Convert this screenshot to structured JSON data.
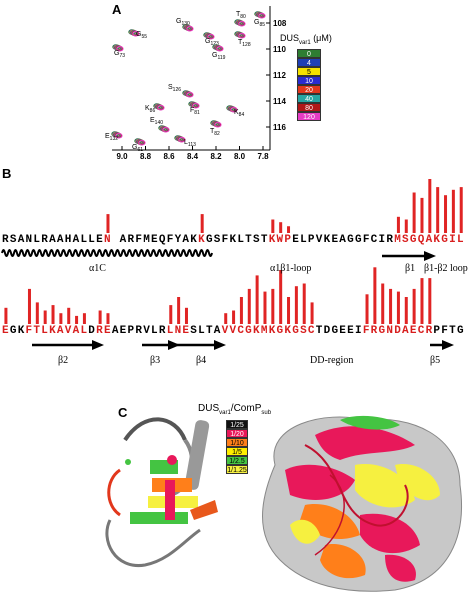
{
  "panels": {
    "a": {
      "label": "A",
      "legend_title_main": "DUS",
      "legend_title_sub": "var1",
      "legend_title_unit": " (μM)",
      "legend": [
        {
          "value": "0",
          "color": "#2e7d32"
        },
        {
          "value": "4",
          "color": "#1f3fb5"
        },
        {
          "value": "5",
          "color": "#f5e100"
        },
        {
          "value": "10",
          "color": "#2b2bd0"
        },
        {
          "value": "20",
          "color": "#e2371c"
        },
        {
          "value": "40",
          "color": "#27a6a2"
        },
        {
          "value": "80",
          "color": "#b01717"
        },
        {
          "value": "120",
          "color": "#e63cc5"
        }
      ],
      "x_ticks": [
        "9.0",
        "8.8",
        "8.6",
        "8.4",
        "8.2",
        "8.0",
        "7.8"
      ],
      "y_ticks": [
        "108",
        "110",
        "112",
        "114",
        "116"
      ],
      "peaks": [
        {
          "label": "G",
          "sub": "55"
        },
        {
          "label": "G",
          "sub": "73"
        },
        {
          "label": "G",
          "sub": "130"
        },
        {
          "label": "G",
          "sub": "123"
        },
        {
          "label": "T",
          "sub": "80"
        },
        {
          "label": "T",
          "sub": "128"
        },
        {
          "label": "G",
          "sub": "85"
        },
        {
          "label": "G",
          "sub": "119"
        },
        {
          "label": "S",
          "sub": "126"
        },
        {
          "label": "K",
          "sub": "86"
        },
        {
          "label": "F",
          "sub": "81"
        },
        {
          "label": "K",
          "sub": "84"
        },
        {
          "label": "E",
          "sub": "140"
        },
        {
          "label": "T",
          "sub": "82"
        },
        {
          "label": "E",
          "sub": "132"
        },
        {
          "label": "L",
          "sub": "113"
        },
        {
          "label": "G",
          "sub": "61"
        }
      ]
    },
    "b": {
      "label": "B",
      "row1": "RSANLRAAHALLEN ARFMEQFYAKKGSFKLTSTKWPELPVKEAGGFCIRMSGQAKGIL",
      "row2": "EGKFTLKAVALDREAEPRVLRLNESLTAVVCGKMKGKGSCTDGEEIFRGNDAECRPFTG",
      "annotations_row1": [
        "α1C",
        "α1β1-loop",
        "β1",
        "β1-β2 loop"
      ],
      "annotations_row2": [
        "β2",
        "β3",
        "β4",
        "DD-region",
        "β5"
      ]
    },
    "c": {
      "label": "C",
      "legend_title_main": "DUS",
      "legend_title_sub": "var1",
      "legend_title_mid": "/ComP",
      "legend_title_sub2": "sub",
      "legend": [
        {
          "value": "1/25",
          "color": "#111111",
          "text": "#ffffff"
        },
        {
          "value": "1/20",
          "color": "#e8185a",
          "text": "#ffffff"
        },
        {
          "value": "1/10",
          "color": "#ff7f1a",
          "text": "#000000"
        },
        {
          "value": "1/5",
          "color": "#ffee00",
          "text": "#000000"
        },
        {
          "value": "1/2.5",
          "color": "#44c442",
          "text": "#000000"
        },
        {
          "value": "1/1.25",
          "color": "#f6f040",
          "text": "#000000"
        }
      ]
    }
  },
  "colors": {
    "highlight": "#d81e1e",
    "bar": "#e02424"
  }
}
